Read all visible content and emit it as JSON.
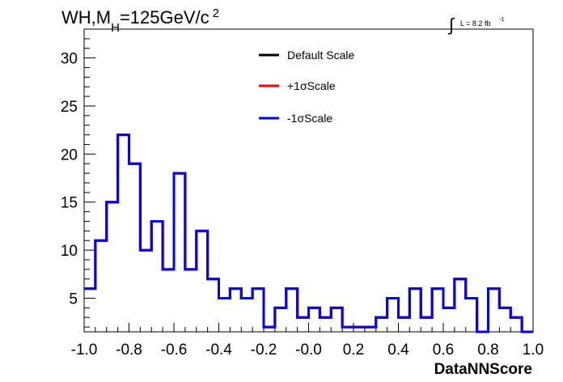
{
  "chart_data": {
    "type": "line",
    "title": {
      "main": "WH,M",
      "sub": "H",
      "rest": "=125GeV/c",
      "sup": "2"
    },
    "lumi": {
      "symbol": "∫",
      "text": "L = 8.2 fb",
      "sup": "-1"
    },
    "xlabel": "DataNNScore",
    "ylabel": "",
    "xlim": [
      -1.0,
      1.0
    ],
    "ylim": [
      1.5,
      33
    ],
    "xticks": [
      "-1.0",
      "-0.8",
      "-0.6",
      "-0.4",
      "-0.2",
      "-0.0",
      "0.2",
      "0.4",
      "0.6",
      "0.8",
      "1.0"
    ],
    "yticks": [
      "5",
      "10",
      "15",
      "20",
      "25",
      "30"
    ],
    "bin_edges": [
      -1.0,
      -0.95,
      -0.9,
      -0.85,
      -0.8,
      -0.75,
      -0.7,
      -0.65,
      -0.6,
      -0.55,
      -0.5,
      -0.45,
      -0.4,
      -0.35,
      -0.3,
      -0.25,
      -0.2,
      -0.15,
      -0.1,
      -0.05,
      0.0,
      0.05,
      0.1,
      0.15,
      0.2,
      0.25,
      0.3,
      0.35,
      0.4,
      0.45,
      0.5,
      0.55,
      0.6,
      0.65,
      0.7,
      0.75,
      0.8,
      0.85,
      0.9,
      0.95,
      1.0
    ],
    "series": [
      {
        "name": "Default Scale",
        "color": "#000000",
        "values": [
          6,
          11,
          15,
          22,
          19,
          10,
          13,
          8,
          18,
          8,
          12,
          7,
          5,
          6,
          5,
          6,
          2,
          4,
          6,
          3,
          4,
          3,
          4,
          2,
          2,
          2,
          3,
          5,
          3,
          6,
          3,
          6,
          4,
          7,
          5,
          1.5,
          6,
          4,
          3,
          1.5
        ]
      },
      {
        "name": "+1σScale",
        "color": "#ff0000",
        "values": [
          6,
          11,
          15,
          22,
          19,
          10,
          13,
          8,
          18,
          8,
          12,
          7,
          5,
          6,
          5,
          6,
          2,
          4,
          6,
          3,
          4,
          3,
          4,
          2,
          2,
          2,
          3,
          5,
          3,
          6,
          3,
          6,
          4,
          7,
          5,
          1.5,
          6,
          4,
          3,
          1.5
        ]
      },
      {
        "name": "-1σScale",
        "color": "#0000ff",
        "values": [
          6,
          11,
          15,
          22,
          19,
          10,
          13,
          8,
          18,
          8,
          12,
          7,
          5,
          6,
          5,
          6,
          2,
          4,
          6,
          3,
          4,
          3,
          4,
          2,
          2,
          2,
          3,
          5,
          3,
          6,
          3,
          6,
          4,
          7,
          5,
          1.5,
          6,
          4,
          3,
          1.5
        ]
      }
    ],
    "legend_position": "top-center",
    "grid": false
  }
}
